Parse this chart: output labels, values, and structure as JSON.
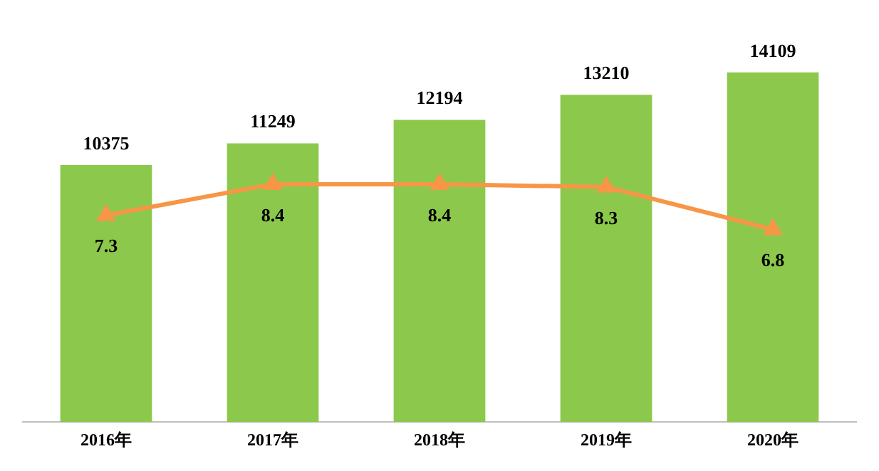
{
  "chart_data": {
    "type": "bar",
    "categories": [
      "2016年",
      "2017年",
      "2018年",
      "2019年",
      "2020年"
    ],
    "series": [
      {
        "color": "#8cc84b",
        "values": [
          10375,
          11249,
          12194,
          13210,
          14109
        ]
      },
      {
        "type": "line",
        "axis": "y2",
        "color": "#f79646",
        "values": [
          7.3,
          8.4,
          8.4,
          8.3,
          6.8
        ]
      }
    ],
    "data_labels": true,
    "legend": false,
    "grid": false,
    "marker": "triangle",
    "line_style": "solid",
    "tick_labels": "x"
  }
}
